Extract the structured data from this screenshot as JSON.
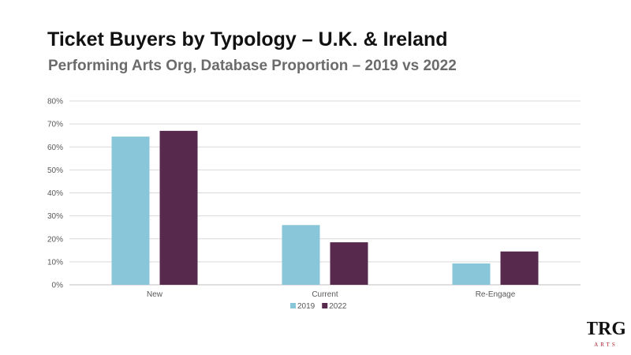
{
  "chart_data": {
    "type": "bar",
    "title": "Ticket Buyers by Typology – U.K. & Ireland",
    "subtitle": "Performing Arts Org, Database Proportion – 2019 vs 2022",
    "categories": [
      "New",
      "Current",
      "Re-Engage"
    ],
    "series": [
      {
        "name": "2019",
        "values": [
          64.5,
          26,
          9.3
        ],
        "color": "#8ac6da"
      },
      {
        "name": "2022",
        "values": [
          67,
          18.5,
          14.5
        ],
        "color": "#57294c"
      }
    ],
    "ylim": [
      0,
      80
    ],
    "yticks": [
      0,
      10,
      20,
      30,
      40,
      50,
      60,
      70,
      80
    ],
    "ytick_format": "percent",
    "xlabel": "",
    "ylabel": "",
    "grid": true,
    "legend_position": "bottom"
  },
  "logo": {
    "monogram": "TRG",
    "text": "ARTS",
    "color": "#111111",
    "accent_color": "#b0202e"
  }
}
